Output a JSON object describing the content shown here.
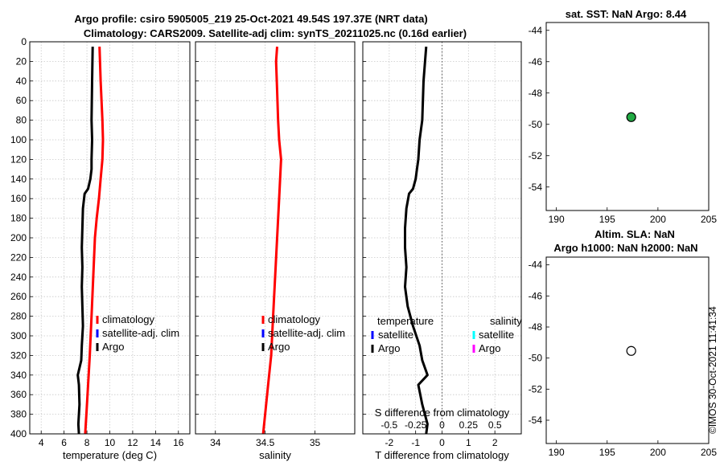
{
  "title": {
    "line1": "Argo profile: csiro 5905005_219 25-Oct-2021 49.54S 197.37E (NRT data)",
    "line2": "Climatology: CARS2009. Satellite-adj clim: synTS_20211025.nc (0.16d earlier)"
  },
  "watermark": "©IMOS 30-Oct-2021 11:41:34",
  "colors": {
    "climatology": "#ff0000",
    "satellite": "#0000ff",
    "argo": "#000000",
    "sal_satellite": "#00ffff",
    "sal_argo": "#ff00ff",
    "marker_green": "#22aa44"
  },
  "chart_data": [
    {
      "id": "temperature",
      "type": "line",
      "xlabel": "temperature (deg C)",
      "ylabel": "",
      "xlim": [
        3,
        17
      ],
      "ylim": [
        0,
        400
      ],
      "xticks": [
        4,
        6,
        8,
        10,
        12,
        14,
        16
      ],
      "xtick_labels": [
        "4",
        "6",
        "8",
        "10",
        "12",
        "14",
        "16"
      ],
      "yticks": [
        0,
        20,
        40,
        60,
        80,
        100,
        120,
        140,
        160,
        180,
        200,
        220,
        240,
        260,
        280,
        300,
        320,
        340,
        360,
        380,
        400
      ],
      "ytick_labels": [
        "0",
        "20",
        "40",
        "60",
        "80",
        "100",
        "120",
        "140",
        "160",
        "180",
        "200",
        "220",
        "240",
        "260",
        "280",
        "300",
        "320",
        "340",
        "360",
        "380",
        "400"
      ],
      "grid": true,
      "legend": {
        "position": "middle-right",
        "entries": [
          "climatology",
          "satellite-adj. clim",
          "Argo"
        ]
      },
      "series": [
        {
          "name": "climatology",
          "color": "#ff0000",
          "x": [
            9.1,
            9.2,
            9.35,
            9.4,
            9.35,
            9.2,
            9.05,
            8.85,
            8.7,
            8.55,
            8.4,
            8.25,
            8.1,
            7.95,
            7.85
          ],
          "y": [
            5,
            40,
            80,
            100,
            120,
            140,
            160,
            180,
            200,
            240,
            280,
            320,
            350,
            380,
            400
          ]
        },
        {
          "name": "Argo",
          "color": "#000000",
          "x": [
            8.5,
            8.45,
            8.4,
            8.45,
            8.4,
            8.4,
            8.3,
            8.1,
            7.8,
            7.65,
            7.6,
            7.55,
            7.6,
            7.55,
            7.6,
            7.65,
            7.55,
            7.5,
            7.2,
            7.3,
            7.35,
            7.25,
            7.3
          ],
          "y": [
            5,
            40,
            80,
            100,
            120,
            130,
            140,
            150,
            155,
            170,
            190,
            210,
            230,
            250,
            270,
            290,
            310,
            325,
            340,
            350,
            370,
            390,
            400
          ]
        }
      ]
    },
    {
      "id": "salinity",
      "type": "line",
      "xlabel": "salinity",
      "xlim": [
        33.8,
        35.4
      ],
      "ylim": [
        0,
        400
      ],
      "xticks": [
        34,
        34.5,
        35
      ],
      "xtick_labels": [
        "34",
        "34.5",
        "35"
      ],
      "grid": true,
      "legend": {
        "position": "middle-right",
        "entries": [
          "climatology",
          "satellite-adj. clim",
          "Argo"
        ]
      },
      "series": [
        {
          "name": "climatology",
          "color": "#ff0000",
          "x": [
            34.62,
            34.61,
            34.62,
            34.63,
            34.64,
            34.66,
            34.65,
            34.64,
            34.62,
            34.6,
            34.58,
            34.56,
            34.53,
            34.5,
            34.48
          ],
          "y": [
            5,
            20,
            50,
            80,
            100,
            120,
            140,
            160,
            200,
            240,
            280,
            320,
            350,
            380,
            400
          ]
        }
      ]
    },
    {
      "id": "difference",
      "type": "line",
      "xlabel": "T difference from climatology",
      "top_label": "S difference from climatology",
      "xlim": [
        -3,
        3
      ],
      "ylim": [
        0,
        400
      ],
      "xticks": [
        -2,
        -1,
        0,
        1,
        2
      ],
      "xtick_labels": [
        "-2",
        "-1",
        "0",
        "1",
        "2"
      ],
      "s_ticks": [
        -0.5,
        -0.25,
        0,
        0.25,
        0.5
      ],
      "s_tick_labels": [
        "-0.5",
        "-0.25",
        "0",
        "0.25",
        "0.5"
      ],
      "grid": true,
      "legend": {
        "temperature_header": "temperature",
        "salinity_header": "salinity",
        "temperature_entries": [
          "satellite",
          "Argo"
        ],
        "salinity_entries": [
          "satellite",
          "Argo"
        ]
      },
      "series": [
        {
          "name": "T Argo - clim",
          "color": "#000000",
          "x": [
            -0.6,
            -0.7,
            -0.75,
            -0.85,
            -0.9,
            -0.95,
            -1.0,
            -1.1,
            -1.25,
            -1.35,
            -1.4,
            -1.4,
            -1.35,
            -1.4,
            -1.3,
            -1.1,
            -0.85,
            -0.75,
            -0.55,
            -0.9,
            -0.75,
            -0.55,
            -0.6
          ],
          "y": [
            5,
            40,
            80,
            100,
            120,
            130,
            140,
            150,
            155,
            170,
            190,
            210,
            230,
            250,
            270,
            290,
            310,
            325,
            340,
            350,
            370,
            390,
            400
          ]
        },
        {
          "name": "zero",
          "color": "#555555",
          "style": "dotted",
          "x": [
            0,
            0
          ],
          "y": [
            0,
            400
          ]
        }
      ]
    },
    {
      "id": "sst_map",
      "type": "scatter",
      "title": "sat. SST: NaN Argo: 8.44",
      "xlim": [
        189,
        205
      ],
      "ylim": [
        -55.5,
        -43.5
      ],
      "xticks": [
        190,
        195,
        200,
        205
      ],
      "xtick_labels": [
        "190",
        "195",
        "200",
        "205"
      ],
      "yticks": [
        -44,
        -46,
        -48,
        -50,
        -52,
        -54
      ],
      "ytick_labels": [
        "-44",
        "-46",
        "-48",
        "-50",
        "-52",
        "-54"
      ],
      "points": [
        {
          "x": 197.37,
          "y": -49.54,
          "fill": "#22aa44"
        }
      ]
    },
    {
      "id": "sla_map",
      "type": "scatter",
      "title": "Altim. SLA: NaN",
      "subtitle": "Argo h1000: NaN h2000: NaN",
      "xlim": [
        189,
        205
      ],
      "ylim": [
        -55.5,
        -43.5
      ],
      "xticks": [
        190,
        195,
        200,
        205
      ],
      "xtick_labels": [
        "190",
        "195",
        "200",
        "205"
      ],
      "yticks": [
        -44,
        -46,
        -48,
        -50,
        -52,
        -54
      ],
      "ytick_labels": [
        "-44",
        "-46",
        "-48",
        "-50",
        "-52",
        "-54"
      ],
      "points": [
        {
          "x": 197.37,
          "y": -49.54,
          "fill": "#ffffff"
        }
      ]
    }
  ]
}
